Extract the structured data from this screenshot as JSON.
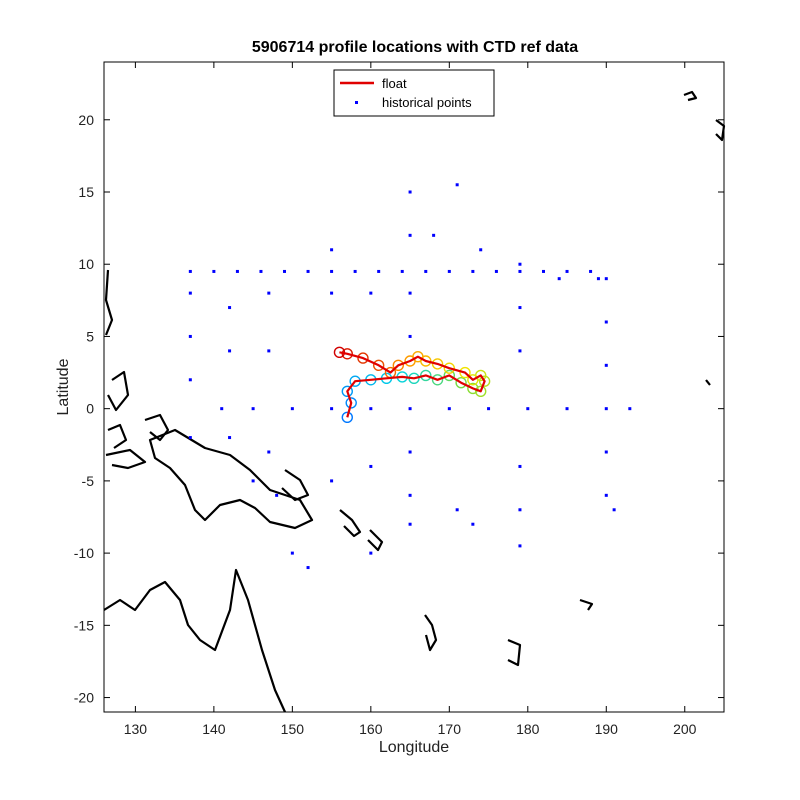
{
  "chart_data": {
    "type": "scatter",
    "title": "5906714 profile locations with CTD ref data",
    "xlabel": "Longitude",
    "ylabel": "Latitude",
    "xlim": [
      126,
      205
    ],
    "ylim": [
      -21,
      24
    ],
    "xticks": [
      130,
      140,
      150,
      160,
      170,
      180,
      190,
      200
    ],
    "yticks": [
      -20,
      -15,
      -10,
      -5,
      0,
      5,
      10,
      15,
      20
    ],
    "grid": false,
    "legend": {
      "placement": "top-center",
      "entries": [
        {
          "label": "float",
          "color": "#e00000",
          "kind": "line"
        },
        {
          "label": "historical points",
          "color": "#0000ff",
          "kind": "marker"
        }
      ]
    },
    "series": [
      {
        "name": "float",
        "kind": "line",
        "color": "#e00000",
        "points": [
          [
            157,
            -0.6
          ],
          [
            157.5,
            0.4
          ],
          [
            157,
            1.2
          ],
          [
            158,
            1.9
          ],
          [
            160,
            2.0
          ],
          [
            162,
            2.1
          ],
          [
            164,
            2.2
          ],
          [
            165.5,
            2.1
          ],
          [
            167,
            2.3
          ],
          [
            168.5,
            2.0
          ],
          [
            170,
            2.3
          ],
          [
            171.5,
            1.8
          ],
          [
            173,
            1.4
          ],
          [
            174,
            1.2
          ],
          [
            174.5,
            1.9
          ],
          [
            174,
            2.3
          ],
          [
            173,
            2.0
          ],
          [
            172,
            2.5
          ],
          [
            170,
            2.8
          ],
          [
            168.5,
            3.1
          ],
          [
            167,
            3.3
          ],
          [
            166,
            3.6
          ],
          [
            165,
            3.3
          ],
          [
            163.5,
            3.0
          ],
          [
            162.5,
            2.5
          ],
          [
            161,
            3.0
          ],
          [
            159,
            3.5
          ],
          [
            157,
            3.8
          ],
          [
            156,
            3.9
          ]
        ]
      },
      {
        "name": "historical points",
        "kind": "points",
        "color": "#0000ff",
        "points": [
          [
            137,
            9.5
          ],
          [
            140,
            9.5
          ],
          [
            143,
            9.5
          ],
          [
            146,
            9.5
          ],
          [
            149,
            9.5
          ],
          [
            152,
            9.5
          ],
          [
            155,
            9.5
          ],
          [
            158,
            9.5
          ],
          [
            161,
            9.5
          ],
          [
            164,
            9.5
          ],
          [
            167,
            9.5
          ],
          [
            170,
            9.5
          ],
          [
            173,
            9.5
          ],
          [
            176,
            9.5
          ],
          [
            179,
            9.5
          ],
          [
            182,
            9.5
          ],
          [
            185,
            9.5
          ],
          [
            188,
            9.5
          ],
          [
            141,
            0
          ],
          [
            145,
            0
          ],
          [
            150,
            0
          ],
          [
            155,
            0
          ],
          [
            160,
            0
          ],
          [
            165,
            0
          ],
          [
            170,
            0
          ],
          [
            175,
            0
          ],
          [
            180,
            0
          ],
          [
            185,
            0
          ],
          [
            190,
            0
          ],
          [
            193,
            0
          ],
          [
            165,
            15
          ],
          [
            165,
            12
          ],
          [
            165,
            8
          ],
          [
            165,
            5
          ],
          [
            165,
            -3
          ],
          [
            165,
            -6
          ],
          [
            165,
            -8
          ],
          [
            179,
            10
          ],
          [
            179,
            7
          ],
          [
            179,
            4
          ],
          [
            179,
            -4
          ],
          [
            179,
            -7
          ],
          [
            179,
            -9.5
          ],
          [
            190,
            9
          ],
          [
            190,
            6
          ],
          [
            190,
            3
          ],
          [
            190,
            -3
          ],
          [
            190,
            -6
          ],
          [
            191,
            -7
          ],
          [
            137,
            8
          ],
          [
            137,
            5
          ],
          [
            137,
            2
          ],
          [
            137,
            -2
          ],
          [
            142,
            7
          ],
          [
            142,
            4
          ],
          [
            142,
            -2
          ],
          [
            147,
            8
          ],
          [
            147,
            4
          ],
          [
            147,
            -3
          ],
          [
            155,
            11
          ],
          [
            155,
            8
          ],
          [
            155,
            -5
          ],
          [
            160,
            8
          ],
          [
            160,
            -4
          ],
          [
            160,
            -10
          ],
          [
            150,
            -10
          ],
          [
            152,
            -11
          ],
          [
            145,
            -5
          ],
          [
            148,
            -6
          ],
          [
            171,
            15.5
          ],
          [
            168,
            12
          ],
          [
            174,
            11
          ],
          [
            184,
            9
          ],
          [
            189,
            9
          ],
          [
            171,
            -7
          ],
          [
            173,
            -8
          ]
        ]
      }
    ]
  }
}
